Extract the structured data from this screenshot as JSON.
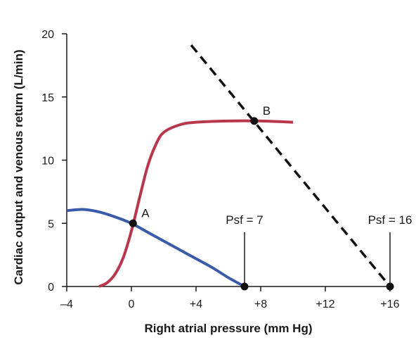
{
  "chart_data": {
    "type": "line",
    "title": "",
    "xlabel": "Right atrial pressure (mm Hg)",
    "ylabel": "Cardiac output and venous return (L/min)",
    "xlim": [
      -4,
      16
    ],
    "ylim": [
      0,
      20
    ],
    "x_ticks": [
      {
        "value": -4,
        "label": "–4"
      },
      {
        "value": 0,
        "label": "0"
      },
      {
        "value": 4,
        "label": "+4"
      },
      {
        "value": 8,
        "label": "+8"
      },
      {
        "value": 12,
        "label": "+12"
      },
      {
        "value": 16,
        "label": "+16"
      }
    ],
    "y_ticks": [
      {
        "value": 0,
        "label": "0"
      },
      {
        "value": 5,
        "label": "5"
      },
      {
        "value": 10,
        "label": "10"
      },
      {
        "value": 15,
        "label": "15"
      },
      {
        "value": 20,
        "label": "20"
      }
    ],
    "grid": false,
    "legend": "none",
    "series": [
      {
        "style": "solid",
        "color": "#b8374a",
        "x": [
          -2,
          -1.5,
          -1,
          -0.5,
          0,
          0.5,
          1,
          1.5,
          2,
          3,
          4,
          6,
          8,
          10
        ],
        "y": [
          0,
          0.3,
          1.0,
          2.3,
          4.4,
          7.0,
          9.5,
          11.2,
          12.2,
          12.8,
          13.0,
          13.1,
          13.1,
          13.0
        ]
      },
      {
        "style": "solid",
        "color": "#3a5aaa",
        "x": [
          -4,
          -3,
          -2,
          -1,
          0,
          1,
          2,
          3,
          4,
          5,
          6,
          7
        ],
        "y": [
          6.0,
          6.1,
          5.9,
          5.5,
          5.0,
          4.3,
          3.6,
          2.9,
          2.2,
          1.5,
          0.7,
          0
        ]
      },
      {
        "style": "dashed",
        "color": "#111111",
        "x": [
          3.7,
          16
        ],
        "y": [
          19.1,
          0
        ]
      }
    ],
    "points": [
      {
        "label": "A",
        "x": 0.1,
        "y": 5.0
      },
      {
        "label": "B",
        "x": 7.6,
        "y": 13.1
      },
      {
        "label": "",
        "x": 7.0,
        "y": 0
      },
      {
        "label": "",
        "x": 16.0,
        "y": 0
      }
    ],
    "annotations": [
      {
        "text": "Psf = 7",
        "x": 7.0
      },
      {
        "text": "Psf = 16",
        "x": 16.0
      }
    ]
  }
}
